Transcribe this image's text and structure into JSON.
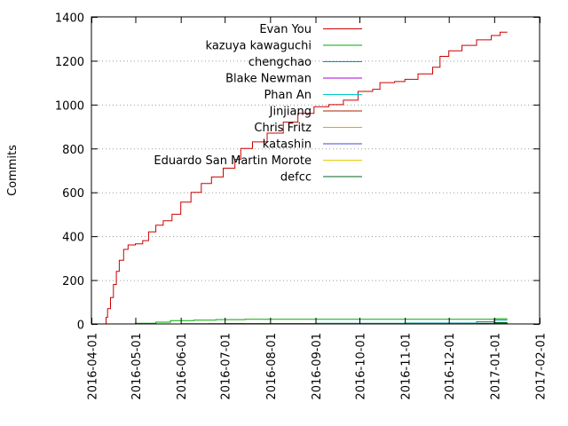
{
  "chart_data": {
    "type": "line",
    "title": "",
    "xlabel": "",
    "ylabel": "Commits",
    "xlim": [
      "2016-04-01",
      "2017-02-01"
    ],
    "ylim": [
      0,
      1400
    ],
    "x_ticks": [
      "2016-04-01",
      "2016-05-01",
      "2016-06-01",
      "2016-07-01",
      "2016-08-01",
      "2016-09-01",
      "2016-10-01",
      "2016-11-01",
      "2016-12-01",
      "2017-01-01",
      "2017-02-01"
    ],
    "y_ticks": [
      0,
      200,
      400,
      600,
      800,
      1000,
      1200,
      1400
    ],
    "grid": "horizontal dotted at y ticks",
    "legend_position": "top-right",
    "line_style": "step",
    "series": [
      {
        "name": "Evan You",
        "color": "#cc0000",
        "points": [
          [
            "2016-04-10",
            0
          ],
          [
            "2016-04-11",
            30
          ],
          [
            "2016-04-12",
            70
          ],
          [
            "2016-04-14",
            120
          ],
          [
            "2016-04-16",
            180
          ],
          [
            "2016-04-18",
            240
          ],
          [
            "2016-04-20",
            290
          ],
          [
            "2016-04-23",
            340
          ],
          [
            "2016-04-26",
            360
          ],
          [
            "2016-05-01",
            365
          ],
          [
            "2016-05-06",
            380
          ],
          [
            "2016-05-10",
            420
          ],
          [
            "2016-05-15",
            450
          ],
          [
            "2016-05-20",
            470
          ],
          [
            "2016-05-26",
            500
          ],
          [
            "2016-06-01",
            555
          ],
          [
            "2016-06-08",
            600
          ],
          [
            "2016-06-15",
            640
          ],
          [
            "2016-06-22",
            670
          ],
          [
            "2016-06-30",
            710
          ],
          [
            "2016-07-08",
            750
          ],
          [
            "2016-07-12",
            800
          ],
          [
            "2016-07-20",
            830
          ],
          [
            "2016-07-30",
            870
          ],
          [
            "2016-08-10",
            920
          ],
          [
            "2016-08-20",
            960
          ],
          [
            "2016-08-31",
            990
          ],
          [
            "2016-09-10",
            1000
          ],
          [
            "2016-09-20",
            1020
          ],
          [
            "2016-09-30",
            1060
          ],
          [
            "2016-10-10",
            1070
          ],
          [
            "2016-10-15",
            1100
          ],
          [
            "2016-10-25",
            1105
          ],
          [
            "2016-11-01",
            1115
          ],
          [
            "2016-11-10",
            1140
          ],
          [
            "2016-11-20",
            1170
          ],
          [
            "2016-11-25",
            1220
          ],
          [
            "2016-12-01",
            1245
          ],
          [
            "2016-12-10",
            1270
          ],
          [
            "2016-12-20",
            1295
          ],
          [
            "2016-12-30",
            1315
          ],
          [
            "2017-01-05",
            1330
          ],
          [
            "2017-01-10",
            1330
          ]
        ]
      },
      {
        "name": "kazuya kawaguchi",
        "color": "#00aa00",
        "points": [
          [
            "2016-04-25",
            0
          ],
          [
            "2016-05-01",
            3
          ],
          [
            "2016-05-15",
            8
          ],
          [
            "2016-05-25",
            15
          ],
          [
            "2016-06-10",
            17
          ],
          [
            "2016-06-25",
            20
          ],
          [
            "2016-07-15",
            21
          ],
          [
            "2016-12-25",
            21
          ],
          [
            "2017-01-01",
            24
          ],
          [
            "2017-01-10",
            24
          ]
        ]
      },
      {
        "name": "chengchao",
        "color": "#0099aa",
        "points": [
          [
            "2016-06-01",
            0
          ],
          [
            "2016-06-20",
            1
          ],
          [
            "2016-07-15",
            2
          ],
          [
            "2016-09-01",
            3
          ],
          [
            "2016-11-01",
            4
          ],
          [
            "2016-12-20",
            10
          ],
          [
            "2017-01-01",
            18
          ],
          [
            "2017-01-10",
            18
          ]
        ]
      },
      {
        "name": "Blake Newman",
        "color": "#aa00cc",
        "points": [
          [
            "2016-06-15",
            0
          ],
          [
            "2016-09-01",
            1
          ],
          [
            "2016-12-01",
            2
          ],
          [
            "2017-01-10",
            3
          ]
        ]
      },
      {
        "name": "Phan An",
        "color": "#00cccc",
        "points": [
          [
            "2016-06-15",
            0
          ],
          [
            "2016-07-15",
            1
          ],
          [
            "2016-10-01",
            2
          ],
          [
            "2017-01-10",
            2
          ]
        ]
      },
      {
        "name": "Jinjiang",
        "color": "#aa2200",
        "points": [
          [
            "2016-05-01",
            0
          ],
          [
            "2016-06-01",
            1
          ],
          [
            "2016-07-01",
            2
          ],
          [
            "2017-01-10",
            2
          ]
        ]
      },
      {
        "name": "Chris Fritz",
        "color": "#ddaa00",
        "points": [
          [
            "2016-07-01",
            0
          ],
          [
            "2016-08-01",
            1
          ],
          [
            "2017-01-10",
            1
          ]
        ]
      },
      {
        "name": "katashin",
        "color": "#4444dd",
        "points": [
          [
            "2016-07-01",
            0
          ],
          [
            "2016-12-01",
            1
          ],
          [
            "2017-01-10",
            1
          ]
        ]
      },
      {
        "name": "Eduardo San Martin Morote",
        "color": "#e6cc00",
        "points": [
          [
            "2016-06-01",
            0
          ],
          [
            "2016-10-01",
            1
          ],
          [
            "2017-01-10",
            1
          ]
        ]
      },
      {
        "name": "defcc",
        "color": "#006622",
        "points": [
          [
            "2016-11-01",
            0
          ],
          [
            "2016-12-15",
            3
          ],
          [
            "2017-01-01",
            6
          ],
          [
            "2017-01-10",
            6
          ]
        ]
      }
    ]
  }
}
